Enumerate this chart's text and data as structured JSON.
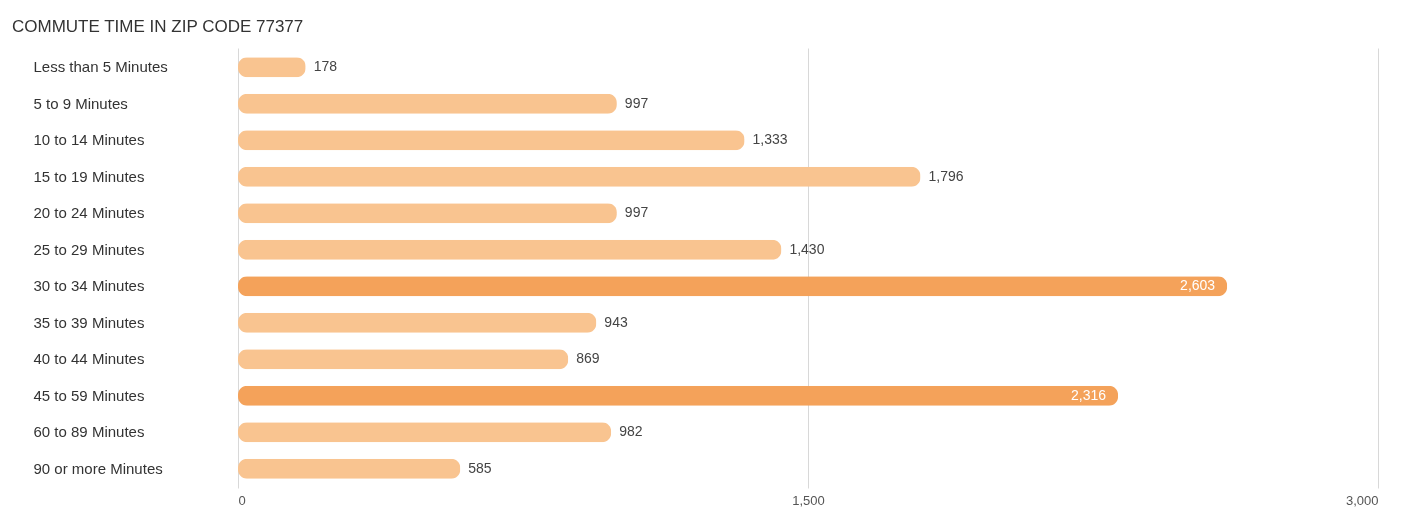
{
  "chart_data": {
    "type": "bar",
    "orientation": "horizontal",
    "title": "COMMUTE TIME IN ZIP CODE 77377",
    "categories": [
      "Less than 5 Minutes",
      "5 to 9 Minutes",
      "10 to 14 Minutes",
      "15 to 19 Minutes",
      "20 to 24 Minutes",
      "25 to 29 Minutes",
      "30 to 34 Minutes",
      "35 to 39 Minutes",
      "40 to 44 Minutes",
      "45 to 59 Minutes",
      "60 to 89 Minutes",
      "90 or more Minutes"
    ],
    "values": [
      178,
      997,
      1333,
      1796,
      997,
      1430,
      2603,
      943,
      869,
      2316,
      982,
      585
    ],
    "colors": [
      "#f9c490",
      "#f9c490",
      "#f9c490",
      "#f9c490",
      "#f9c490",
      "#f9c490",
      "#f4a25a",
      "#f9c490",
      "#f9c490",
      "#f4a25a",
      "#f9c490",
      "#f9c490"
    ],
    "value_labels": [
      "178",
      "997",
      "1,333",
      "1,796",
      "997",
      "1,430",
      "2,603",
      "943",
      "869",
      "2,316",
      "982",
      "585"
    ],
    "xlim": [
      0,
      3000
    ],
    "xticks": [
      0,
      {
        "value": 1500,
        "label": "1,500"
      },
      {
        "value": 3000,
        "label": "3,000"
      }
    ],
    "grid": "x"
  }
}
